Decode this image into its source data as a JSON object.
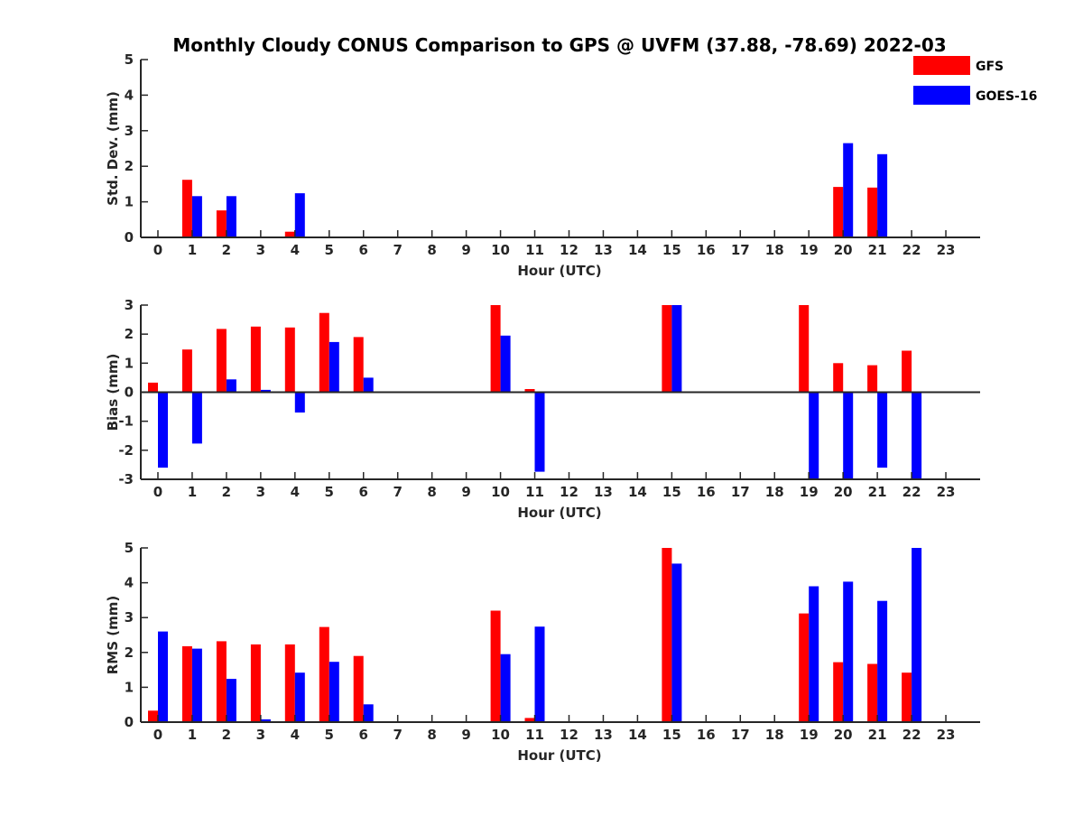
{
  "title": "Monthly Cloudy CONUS Comparison to GPS @ UVFM (37.88, -78.69) 2022-03",
  "legend": [
    {
      "name": "GFS",
      "color": "#ff0000"
    },
    {
      "name": "GOES-16",
      "color": "#0000ff"
    }
  ],
  "chart_data": [
    {
      "type": "bar",
      "xlabel": "Hour (UTC)",
      "ylabel": "Std. Dev. (mm)",
      "ylim": [
        0,
        5
      ],
      "yticks": [
        0,
        1,
        2,
        3,
        4,
        5
      ],
      "categories": [
        "0",
        "1",
        "2",
        "3",
        "4",
        "5",
        "6",
        "7",
        "8",
        "9",
        "10",
        "11",
        "12",
        "13",
        "14",
        "15",
        "16",
        "17",
        "18",
        "19",
        "20",
        "21",
        "22",
        "23"
      ],
      "series": [
        {
          "name": "GFS",
          "values": [
            0,
            1.62,
            0.76,
            0,
            0.16,
            0,
            0,
            0,
            0,
            0,
            0,
            0,
            0,
            0,
            0,
            0,
            0,
            0,
            0,
            0,
            1.42,
            1.4,
            0,
            0
          ]
        },
        {
          "name": "GOES-16",
          "values": [
            0,
            1.16,
            1.16,
            0,
            1.24,
            0,
            0,
            0,
            0,
            0,
            0,
            0,
            0,
            0,
            0,
            0,
            0,
            0,
            0,
            0,
            2.65,
            2.34,
            0,
            0
          ]
        }
      ]
    },
    {
      "type": "bar",
      "xlabel": "Hour (UTC)",
      "ylabel": "Bias (mm)",
      "ylim": [
        -3,
        3
      ],
      "yticks": [
        -3,
        -2,
        -1,
        0,
        1,
        2,
        3
      ],
      "categories": [
        "0",
        "1",
        "2",
        "3",
        "4",
        "5",
        "6",
        "7",
        "8",
        "9",
        "10",
        "11",
        "12",
        "13",
        "14",
        "15",
        "16",
        "17",
        "18",
        "19",
        "20",
        "21",
        "22",
        "23"
      ],
      "series": [
        {
          "name": "GFS",
          "values": [
            0.33,
            1.47,
            2.18,
            2.26,
            2.23,
            2.73,
            1.9,
            0,
            0,
            0,
            3.0,
            0.11,
            0,
            0,
            0,
            3.0,
            0,
            0,
            0,
            3.0,
            1.0,
            0.93,
            1.43,
            0
          ]
        },
        {
          "name": "GOES-16",
          "values": [
            -2.6,
            -1.77,
            0.44,
            0.08,
            -0.7,
            1.73,
            0.5,
            0,
            0,
            0,
            1.95,
            -2.74,
            0,
            0,
            0,
            3.0,
            0,
            0,
            0,
            -3.0,
            -3.0,
            -2.6,
            -3.0,
            0
          ]
        }
      ]
    },
    {
      "type": "bar",
      "xlabel": "Hour (UTC)",
      "ylabel": "RMS (mm)",
      "ylim": [
        0,
        5
      ],
      "yticks": [
        0,
        1,
        2,
        3,
        4,
        5
      ],
      "categories": [
        "0",
        "1",
        "2",
        "3",
        "4",
        "5",
        "6",
        "7",
        "8",
        "9",
        "10",
        "11",
        "12",
        "13",
        "14",
        "15",
        "16",
        "17",
        "18",
        "19",
        "20",
        "21",
        "22",
        "23"
      ],
      "series": [
        {
          "name": "GFS",
          "values": [
            0.33,
            2.18,
            2.32,
            2.23,
            2.23,
            2.73,
            1.9,
            0,
            0,
            0,
            3.2,
            0.12,
            0,
            0,
            0,
            5.0,
            0,
            0,
            0,
            3.12,
            1.72,
            1.67,
            1.42,
            0
          ]
        },
        {
          "name": "GOES-16",
          "values": [
            2.6,
            2.11,
            1.24,
            0.08,
            1.42,
            1.73,
            0.51,
            0,
            0,
            0,
            1.95,
            2.74,
            0,
            0,
            0,
            4.55,
            0,
            0,
            0,
            3.9,
            4.03,
            3.48,
            5.0,
            0
          ]
        }
      ]
    }
  ]
}
